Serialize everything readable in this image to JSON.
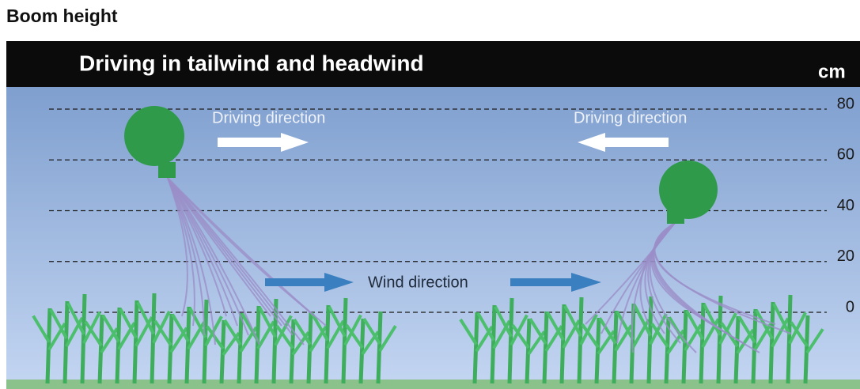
{
  "header": {
    "title": "Boom height"
  },
  "banner": {
    "title": "Driving in tailwind and headwind",
    "unit": "cm"
  },
  "scale": {
    "ticks": [
      80,
      60,
      40,
      20,
      0
    ]
  },
  "labels": {
    "driving_left": "Driving direction",
    "driving_right": "Driving direction",
    "wind": "Wind direction"
  }
}
